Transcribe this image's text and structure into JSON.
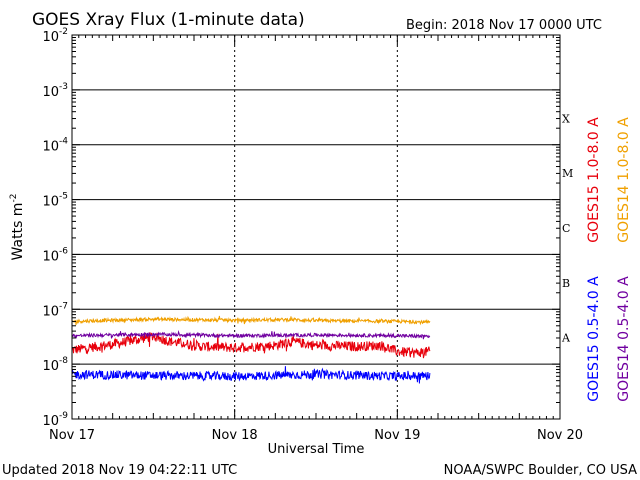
{
  "chart_data": {
    "type": "line",
    "title": "GOES Xray Flux (1-minute data)",
    "begin_label": "Begin:  2018 Nov 17 0000 UTC",
    "xlabel": "Universal Time",
    "ylabel": "Watts m",
    "ylabel_exp": "-2",
    "y_scale": "log",
    "ylim": [
      1e-09,
      0.01
    ],
    "y_ticks": [
      {
        "base": "10",
        "exp": "-9"
      },
      {
        "base": "10",
        "exp": "-8"
      },
      {
        "base": "10",
        "exp": "-7"
      },
      {
        "base": "10",
        "exp": "-6"
      },
      {
        "base": "10",
        "exp": "-5"
      },
      {
        "base": "10",
        "exp": "-4"
      },
      {
        "base": "10",
        "exp": "-3"
      },
      {
        "base": "10",
        "exp": "-2"
      }
    ],
    "x_unit": "days since 2018 Nov 17 0000 UTC",
    "xlim": [
      0,
      3
    ],
    "x_ticks": [
      "Nov 17",
      "Nov 18",
      "Nov 19",
      "Nov 20"
    ],
    "flare_classes": [
      {
        "label": "X",
        "log_low": -4
      },
      {
        "label": "M",
        "log_low": -5
      },
      {
        "label": "C",
        "log_low": -6
      },
      {
        "label": "B",
        "log_low": -7
      },
      {
        "label": "A",
        "log_low": -8
      }
    ],
    "grid": "horizontal lines at each decade from 1e-8 to 1e-3; dotted vertical lines at day boundaries",
    "legend_placement": "right, vertical text",
    "series": [
      {
        "name": "GOES15 1.0-8.0 A",
        "color": "#e8000b",
        "x": [
          0,
          0.25,
          0.5,
          0.6,
          0.8,
          1.0,
          1.25,
          1.35,
          1.5,
          1.75,
          1.9,
          2.0,
          2.1,
          2.2
        ],
        "values": [
          1.8e-08,
          2.3e-08,
          3.2e-08,
          2.6e-08,
          2.1e-08,
          2e-08,
          2.2e-08,
          2.6e-08,
          2.2e-08,
          2.1e-08,
          2.2e-08,
          1.7e-08,
          1.6e-08,
          1.7e-08
        ]
      },
      {
        "name": "GOES14 1.0-8.0 A",
        "color": "#f0a000",
        "x": [
          0,
          0.25,
          0.5,
          1.0,
          1.35,
          1.5,
          2.0,
          2.2
        ],
        "values": [
          6e-08,
          6.3e-08,
          6.6e-08,
          6.3e-08,
          6.5e-08,
          6.2e-08,
          6e-08,
          5.8e-08
        ]
      },
      {
        "name": "GOES15 0.5-4.0 A",
        "color": "#0000ff",
        "x": [
          0,
          0.5,
          1.0,
          1.5,
          2.0,
          2.2
        ],
        "values": [
          6.5e-09,
          6.2e-09,
          6e-09,
          6.5e-09,
          6e-09,
          6.2e-09
        ]
      },
      {
        "name": "GOES14 0.5-4.0 A",
        "color": "#7000a0",
        "x": [
          0,
          0.5,
          1.0,
          1.5,
          2.0,
          2.2
        ],
        "values": [
          3.3e-08,
          3.5e-08,
          3.3e-08,
          3.4e-08,
          3.3e-08,
          3.2e-08
        ]
      }
    ],
    "legend_groups": [
      {
        "group": "long",
        "entries": [
          "GOES15 1.0-8.0 A",
          "GOES14 1.0-8.0 A"
        ]
      },
      {
        "group": "short",
        "entries": [
          "GOES15 0.5-4.0 A",
          "GOES14 0.5-4.0 A"
        ]
      }
    ]
  },
  "footer": {
    "updated": "Updated 2018 Nov 19 04:22:11 UTC",
    "credit": "NOAA/SWPC Boulder, CO USA"
  },
  "colors": {
    "background": "#ffffff",
    "axis": "#000000"
  }
}
